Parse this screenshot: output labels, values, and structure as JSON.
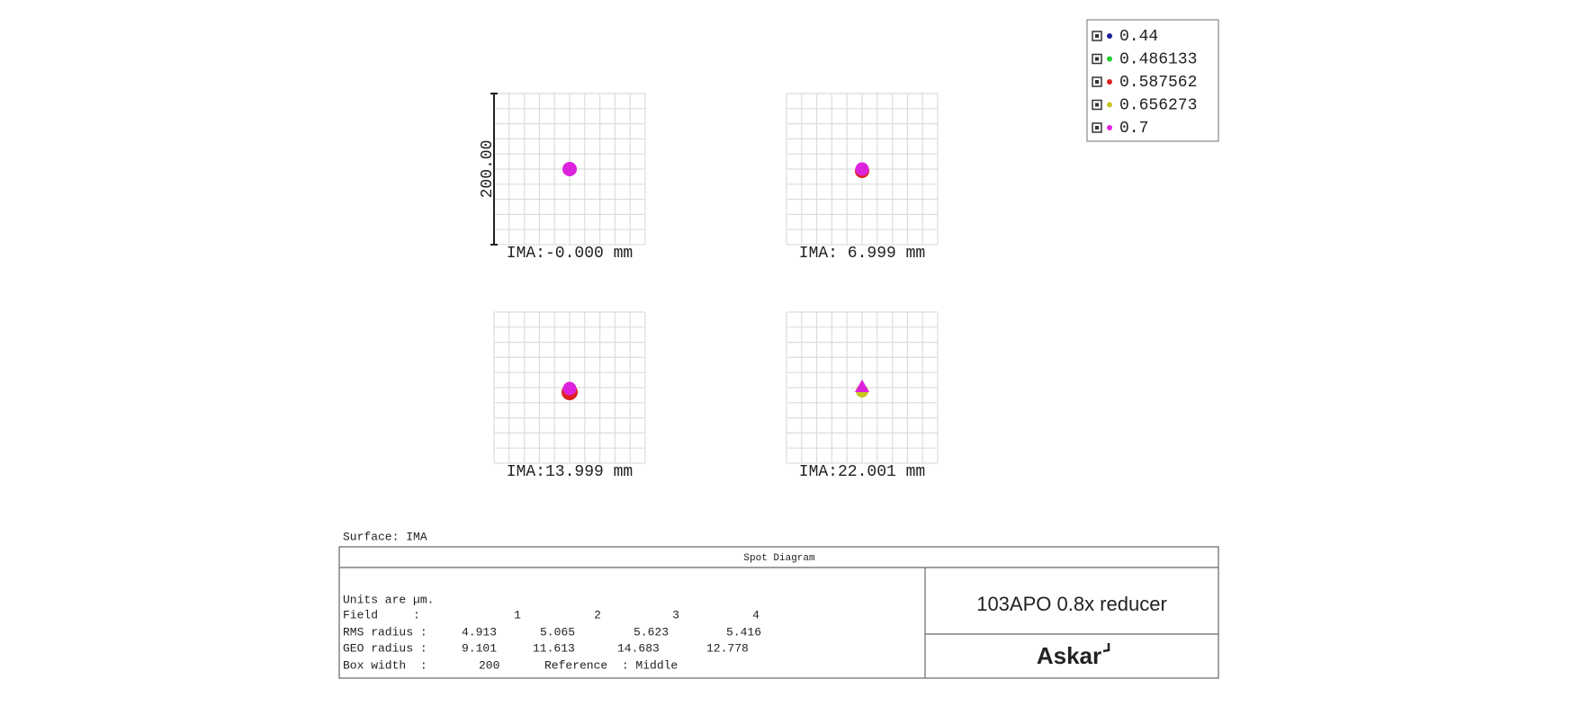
{
  "legend": {
    "items": [
      {
        "label": "0.44",
        "color": "#1f1f9e"
      },
      {
        "label": "0.486133",
        "color": "#22cc33"
      },
      {
        "label": "0.587562",
        "color": "#dd2222"
      },
      {
        "label": "0.656273",
        "color": "#c8c822"
      },
      {
        "label": "0.7",
        "color": "#dd22dd"
      }
    ]
  },
  "axis_label": "200.00",
  "plots": [
    {
      "label": "IMA:-0.000 mm"
    },
    {
      "label": "IMA: 6.999 mm"
    },
    {
      "label": "IMA:13.999 mm"
    },
    {
      "label": "IMA:22.001 mm"
    }
  ],
  "surface": "Surface: IMA",
  "table": {
    "header": "Spot Diagram",
    "units": "Units are µm.",
    "field": {
      "label": "Field     :",
      "values": [
        1,
        2,
        3,
        4
      ]
    },
    "rms": {
      "label": "RMS radius :",
      "values": [
        4.913,
        5.065,
        5.623,
        5.416
      ]
    },
    "geo": {
      "label": "GEO radius :",
      "values": [
        9.101,
        11.613,
        14.683,
        12.778
      ]
    },
    "box_width": {
      "label": "Box width  :",
      "value": 200
    },
    "reference": "Reference  : Middle",
    "title": "103APO 0.8x reducer",
    "logo": "Askar"
  }
}
